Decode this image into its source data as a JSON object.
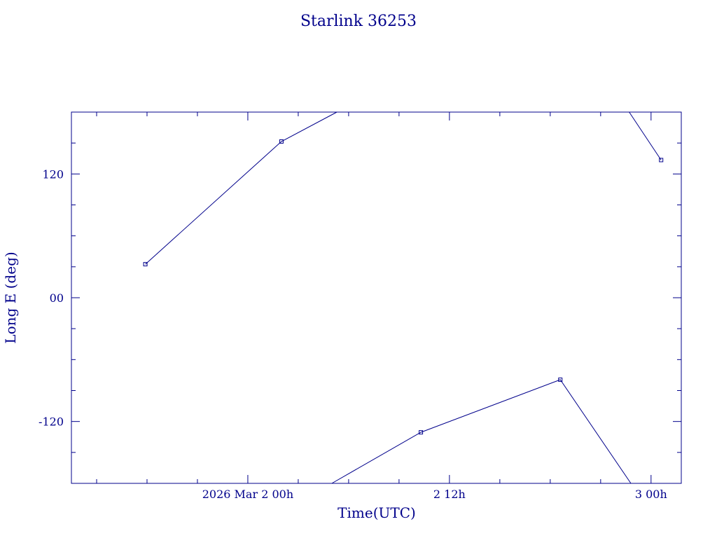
{
  "chart_data": {
    "type": "line",
    "title": "Starlink 36253",
    "xlabel": "Time(UTC)",
    "ylabel": "Long E (deg)",
    "x_unit": "hours from 2026 Mar 2 00h",
    "xlim": [
      -10.5,
      25.8
    ],
    "ylim": [
      -180,
      180
    ],
    "x_ticks": [
      {
        "x": 0,
        "label": "2026 Mar  2  00h"
      },
      {
        "x": 12,
        "label": "2  12h"
      },
      {
        "x": 24,
        "label": "3  00h"
      }
    ],
    "y_ticks": [
      {
        "y": 120,
        "label": "120"
      },
      {
        "y": 0,
        "label": "00"
      },
      {
        "y": -120,
        "label": "-120"
      }
    ],
    "x_minor_step": 3,
    "y_minor_step": 30,
    "grid": false,
    "series": [
      {
        "segments": [
          [
            [
              -6.1,
              32.5
            ],
            [
              2.0,
              151.5
            ],
            [
              5.3,
              180
            ]
          ],
          [
            [
              5.0,
              -180
            ],
            [
              10.3,
              -130.5
            ],
            [
              18.6,
              -79.5
            ],
            [
              22.8,
              -180
            ]
          ],
          [
            [
              22.7,
              180
            ],
            [
              24.6,
              133.5
            ]
          ]
        ],
        "markers": [
          [
            -6.1,
            32.5
          ],
          [
            2.0,
            151.5
          ],
          [
            10.3,
            -130.5
          ],
          [
            18.6,
            -79.5
          ],
          [
            24.6,
            133.5
          ]
        ]
      }
    ]
  }
}
